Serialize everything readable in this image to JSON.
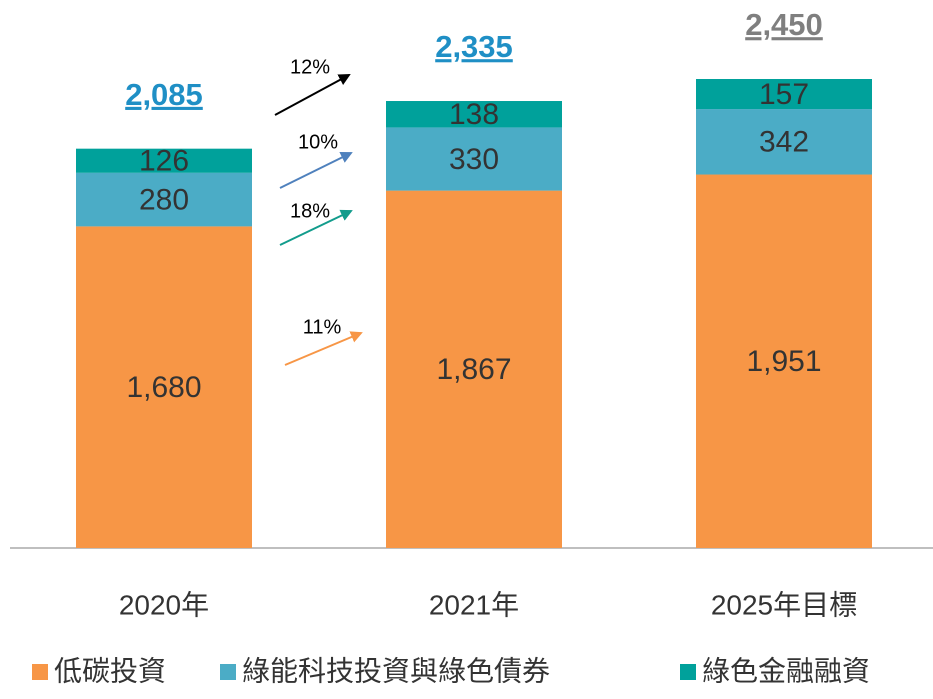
{
  "chart_data": {
    "type": "stacked_bar",
    "categories": [
      "2020年",
      "2021年",
      "2025年目標"
    ],
    "series": [
      {
        "name": "低碳投資",
        "color": "#f79646",
        "values": [
          1680,
          1867,
          1951
        ],
        "value_labels": [
          "1,680",
          "1,867",
          "1,951"
        ]
      },
      {
        "name": "綠能科技投資與綠色債券",
        "color": "#4bacc6",
        "values": [
          280,
          330,
          342
        ]
      },
      {
        "name": "綠色金融融資",
        "color": "#00a19b",
        "values": [
          126,
          138,
          157
        ]
      }
    ],
    "totals": {
      "values": [
        2085,
        2335,
        2450
      ],
      "value_labels": [
        "2,085",
        "2,335",
        "2,450"
      ],
      "colors": [
        "#1f8fc5",
        "#1f8fc5",
        "#7f7f7f"
      ]
    },
    "annotations": [
      {
        "text": "12%",
        "color": "#000000"
      },
      {
        "text": "10%",
        "color": "#4f81bd"
      },
      {
        "text": "18%",
        "color": "#129c8c"
      },
      {
        "text": "11%",
        "color": "#f79646"
      }
    ],
    "legend": "bottom"
  }
}
